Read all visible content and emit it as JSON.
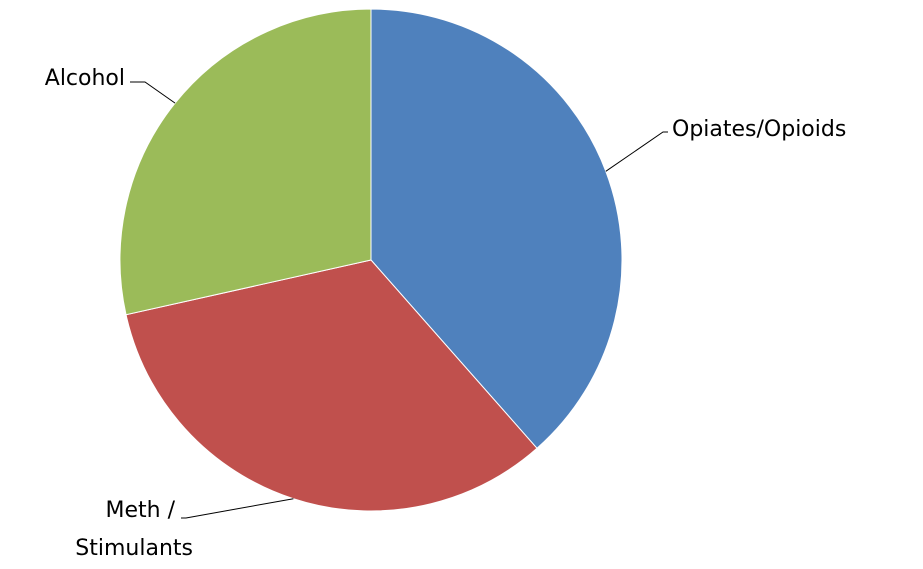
{
  "chart_data": {
    "type": "pie",
    "title": "",
    "start_angle_deg": 0,
    "direction": "clockwise",
    "series": [
      {
        "values": [
          38.5,
          33,
          28.5
        ]
      }
    ],
    "categories": [
      "Opiates/Opioids",
      "Meth / Stimulants",
      "Alcohol"
    ],
    "slices": [
      {
        "key": "opiates",
        "label": "Opiates/Opioids",
        "label_lines": [
          "Opiates/Opioids"
        ],
        "value": 38.5,
        "color": "#4f81bd"
      },
      {
        "key": "meth",
        "label": "Meth / Stimulants",
        "label_lines": [
          "Meth /",
          "Stimulants"
        ],
        "value": 33,
        "color": "#c0504d"
      },
      {
        "key": "alcohol",
        "label": "Alcohol",
        "label_lines": [
          "Alcohol"
        ],
        "value": 28.5,
        "color": "#9bbb59"
      }
    ],
    "legend": "none",
    "data_labels": "category-name-outside-with-leader-lines"
  }
}
